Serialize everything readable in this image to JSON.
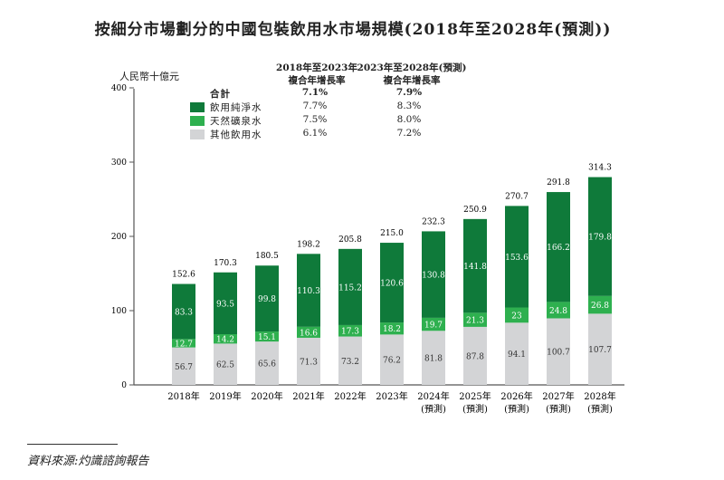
{
  "chart_data": {
    "type": "bar",
    "stacked": true,
    "title": "按細分市場劃分的中國包裝飲用水市場規模(2018年至2028年(預測))",
    "ylabel": "人民幣十億元",
    "ylim": [
      0,
      400
    ],
    "yticks": [
      "0",
      "100",
      "200",
      "300",
      "400"
    ],
    "categories": [
      "2018年",
      "2019年",
      "2020年",
      "2021年",
      "2022年",
      "2023年",
      "2024年",
      "2025年",
      "2026年",
      "2027年",
      "2028年"
    ],
    "category_sublabels": [
      "",
      "",
      "",
      "",
      "",
      "",
      "(預測)",
      "(預測)",
      "(預測)",
      "(預測)",
      "(預測)"
    ],
    "series": [
      {
        "name": "其他飲用水",
        "color": "#d3d4d6",
        "values": [
          56.7,
          62.5,
          65.6,
          71.3,
          73.2,
          76.2,
          81.8,
          87.8,
          94.1,
          100.7,
          107.7
        ]
      },
      {
        "name": "天然礦泉水",
        "color": "#2eb04f",
        "values": [
          12.7,
          14.2,
          15.1,
          16.6,
          17.3,
          18.2,
          19.7,
          21.3,
          23.0,
          24.8,
          26.8
        ]
      },
      {
        "name": "飲用純淨水",
        "color": "#0f7a3a",
        "values": [
          83.3,
          93.5,
          99.8,
          110.3,
          115.2,
          120.6,
          130.8,
          141.8,
          153.6,
          166.2,
          179.8
        ]
      }
    ],
    "totals": [
      "152.6",
      "170.3",
      "180.5",
      "198.2",
      "205.8",
      "215.0",
      "232.3",
      "250.9",
      "270.7",
      "291.8",
      "314.3"
    ],
    "legend": {
      "placement": "top-left",
      "col_headers": [
        [
          "2018年至2023年",
          "複合年增長率"
        ],
        [
          "2023年至2028年(預測)",
          "複合年增長率"
        ]
      ],
      "rows": [
        {
          "label": "合計",
          "cagr1": "7.1%",
          "cagr2": "7.9%",
          "bold": true
        },
        {
          "label": "飲用純淨水",
          "color": "#0f7a3a",
          "cagr1": "7.7%",
          "cagr2": "8.3%"
        },
        {
          "label": "天然礦泉水",
          "color": "#2eb04f",
          "cagr1": "7.5%",
          "cagr2": "8.0%"
        },
        {
          "label": "其他飲用水",
          "color": "#d3d4d6",
          "cagr1": "6.1%",
          "cagr2": "7.2%"
        }
      ]
    }
  },
  "source": "資料來源:灼識諮詢報告"
}
